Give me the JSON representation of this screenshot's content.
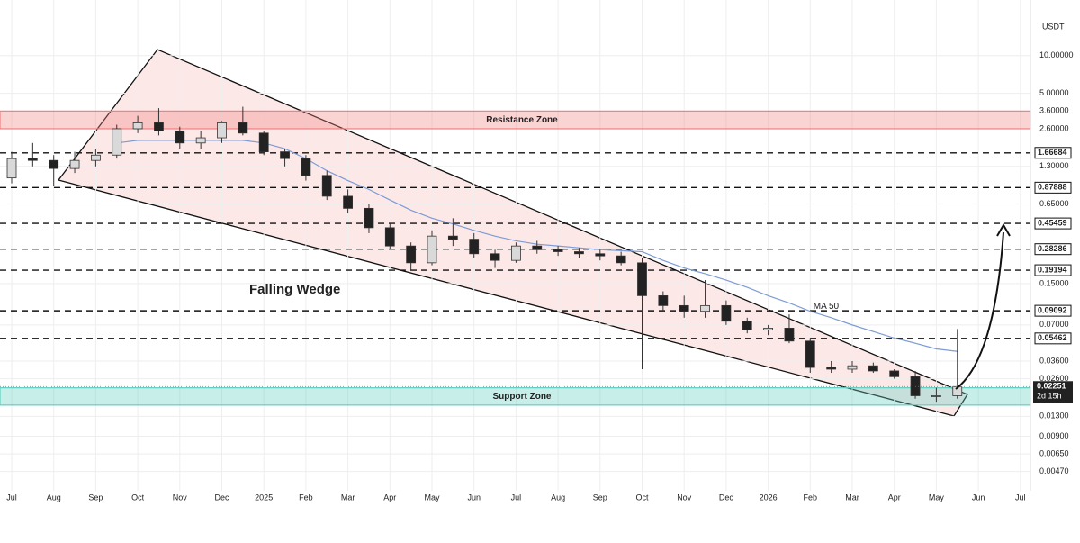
{
  "chart_data": {
    "type": "candlestick",
    "unit": "USDT",
    "scale": "log",
    "grid": true,
    "categories": [
      "Jul",
      null,
      "Aug",
      null,
      "Sep",
      null,
      "Oct",
      null,
      "Nov",
      null,
      "Dec",
      null,
      "2025",
      null,
      "Feb",
      null,
      "Mar",
      null,
      "Apr",
      null,
      "May",
      null,
      "Jun",
      null,
      "Jul",
      null,
      "Aug",
      null,
      "Sep",
      null,
      "Oct",
      null,
      "Nov",
      null,
      "Dec",
      null,
      "2026",
      null,
      "Feb",
      null,
      "Mar",
      null,
      "Apr",
      null,
      "May",
      null,
      "Jun",
      null,
      "Jul"
    ],
    "ohlc": [
      [
        1.05,
        1.7,
        0.95,
        1.5
      ],
      [
        1.5,
        2.0,
        1.3,
        1.45
      ],
      [
        1.45,
        1.6,
        0.9,
        1.25
      ],
      [
        1.25,
        1.7,
        1.15,
        1.45
      ],
      [
        1.45,
        1.8,
        1.3,
        1.6
      ],
      [
        1.6,
        2.8,
        1.5,
        2.6
      ],
      [
        2.6,
        3.3,
        2.4,
        2.9
      ],
      [
        2.9,
        3.8,
        2.3,
        2.5
      ],
      [
        2.5,
        2.7,
        1.8,
        2.0
      ],
      [
        2.0,
        2.5,
        1.8,
        2.2
      ],
      [
        2.2,
        3.0,
        2.0,
        2.9
      ],
      [
        2.9,
        3.9,
        2.3,
        2.4
      ],
      [
        2.4,
        2.5,
        1.6,
        1.7
      ],
      [
        1.7,
        1.8,
        1.3,
        1.5
      ],
      [
        1.5,
        1.6,
        1.0,
        1.1
      ],
      [
        1.1,
        1.2,
        0.7,
        0.75
      ],
      [
        0.75,
        0.85,
        0.55,
        0.6
      ],
      [
        0.6,
        0.65,
        0.38,
        0.42
      ],
      [
        0.42,
        0.45,
        0.28,
        0.3
      ],
      [
        0.3,
        0.32,
        0.19,
        0.22
      ],
      [
        0.22,
        0.4,
        0.21,
        0.36
      ],
      [
        0.36,
        0.5,
        0.3,
        0.34
      ],
      [
        0.34,
        0.38,
        0.24,
        0.26
      ],
      [
        0.26,
        0.28,
        0.2,
        0.23
      ],
      [
        0.23,
        0.32,
        0.22,
        0.3
      ],
      [
        0.3,
        0.33,
        0.26,
        0.28
      ],
      [
        0.28,
        0.3,
        0.25,
        0.27
      ],
      [
        0.27,
        0.29,
        0.24,
        0.26
      ],
      [
        0.26,
        0.28,
        0.23,
        0.25
      ],
      [
        0.25,
        0.27,
        0.21,
        0.22
      ],
      [
        0.22,
        0.24,
        0.031,
        0.12
      ],
      [
        0.12,
        0.13,
        0.09,
        0.1
      ],
      [
        0.1,
        0.12,
        0.08,
        0.09
      ],
      [
        0.09,
        0.16,
        0.08,
        0.1
      ],
      [
        0.1,
        0.11,
        0.07,
        0.075
      ],
      [
        0.075,
        0.08,
        0.06,
        0.064
      ],
      [
        0.064,
        0.07,
        0.058,
        0.066
      ],
      [
        0.066,
        0.085,
        0.05,
        0.052
      ],
      [
        0.052,
        0.055,
        0.029,
        0.032
      ],
      [
        0.032,
        0.036,
        0.029,
        0.031
      ],
      [
        0.031,
        0.036,
        0.029,
        0.033
      ],
      [
        0.033,
        0.035,
        0.029,
        0.03
      ],
      [
        0.03,
        0.031,
        0.026,
        0.027
      ],
      [
        0.027,
        0.03,
        0.018,
        0.019
      ],
      [
        0.019,
        0.022,
        0.017,
        0.019
      ],
      [
        0.019,
        0.065,
        0.018,
        0.0225
      ],
      null,
      null,
      null
    ],
    "up_color": "#d9d9d9",
    "down_color": "#222222",
    "series": [
      {
        "name": "MA 50",
        "color": "#7d9bd6",
        "values": [
          null,
          null,
          null,
          null,
          null,
          2.0,
          2.1,
          2.1,
          2.1,
          2.1,
          2.1,
          2.1,
          2.0,
          1.8,
          1.5,
          1.2,
          1.0,
          0.85,
          0.7,
          0.58,
          0.5,
          0.45,
          0.4,
          0.36,
          0.33,
          0.31,
          0.3,
          0.29,
          0.28,
          0.275,
          0.27,
          0.23,
          0.2,
          0.18,
          0.16,
          0.14,
          0.12,
          0.105,
          0.09,
          0.08,
          0.07,
          0.062,
          0.055,
          0.05,
          0.045,
          0.043,
          null,
          null,
          null
        ]
      }
    ],
    "ylim": [
      0.0033,
      20
    ],
    "yticks": [
      {
        "value": 10,
        "label": "10.00000"
      },
      {
        "value": 5,
        "label": "5.00000"
      },
      {
        "value": 3.6,
        "label": "3.60000"
      },
      {
        "value": 2.6,
        "label": "2.60000"
      },
      {
        "value": 1.3,
        "label": "1.30000"
      },
      {
        "value": 0.65,
        "label": "0.65000"
      },
      {
        "value": 0.15,
        "label": "0.15000"
      },
      {
        "value": 0.07,
        "label": "0.07000"
      },
      {
        "value": 0.036,
        "label": "0.03600"
      },
      {
        "value": 0.026,
        "label": "0.02600"
      },
      {
        "value": 0.013,
        "label": "0.01300"
      },
      {
        "value": 0.009,
        "label": "0.00900"
      },
      {
        "value": 0.0065,
        "label": "0.00650"
      },
      {
        "value": 0.0047,
        "label": "0.00470"
      }
    ],
    "levels": [
      1.66684,
      0.87888,
      0.45459,
      0.28286,
      0.19194,
      0.09092,
      0.05462
    ],
    "last_price": {
      "value": 0.02251,
      "countdown": "2d 15h"
    },
    "zones": [
      {
        "label": "Resistance Zone",
        "range": [
          2.6,
          3.6
        ],
        "color": "#f08080"
      },
      {
        "label": "Support Zone",
        "range": [
          0.016,
          0.022
        ],
        "color": "#5fcfc0"
      }
    ],
    "pattern_label": "Falling Wedge"
  }
}
